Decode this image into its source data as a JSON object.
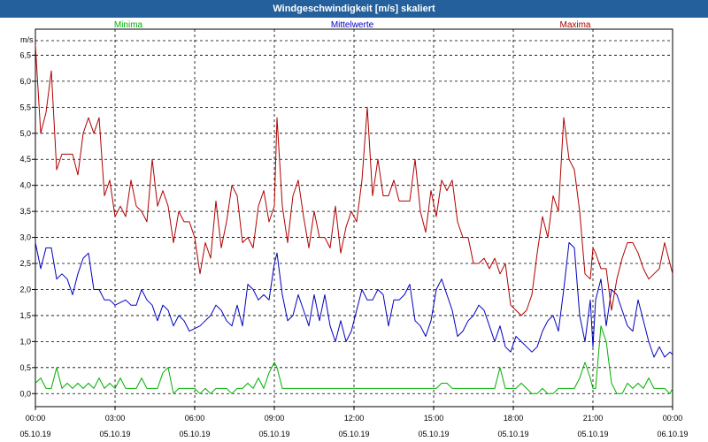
{
  "title": "Windgeschwindigkeit [m/s] skaliert",
  "chart_data": {
    "type": "line",
    "title": "Windgeschwindigkeit [m/s] skaliert",
    "ylabel": "m/s",
    "ylim": [
      -0.25,
      7.0
    ],
    "yticks": [
      "0,0",
      "0,5",
      "1,0",
      "1,5",
      "2,0",
      "2,5",
      "3,0",
      "3,5",
      "4,0",
      "4,5",
      "5,0",
      "5,5",
      "6,0",
      "6,5"
    ],
    "xlim": [
      0,
      24
    ],
    "xticks": [
      {
        "time": "00:00",
        "date": "05.10.19"
      },
      {
        "time": "03:00",
        "date": "05.10.19"
      },
      {
        "time": "06:00",
        "date": "05.10.19"
      },
      {
        "time": "09:00",
        "date": "05.10.19"
      },
      {
        "time": "12:00",
        "date": "05.10.19"
      },
      {
        "time": "15:00",
        "date": "05.10.19"
      },
      {
        "time": "18:00",
        "date": "05.10.19"
      },
      {
        "time": "21:00",
        "date": "05.10.19"
      },
      {
        "time": "00:00",
        "date": "06.10.19"
      }
    ],
    "grid": true,
    "legend_position": "top",
    "series": [
      {
        "name": "Minima",
        "color": "#00b000",
        "x": [
          0,
          0.2,
          0.4,
          0.6,
          0.8,
          1.0,
          1.2,
          1.4,
          1.6,
          1.8,
          2.0,
          2.2,
          2.4,
          2.6,
          2.8,
          3.0,
          3.2,
          3.4,
          3.6,
          3.8,
          4.0,
          4.2,
          4.4,
          4.6,
          4.8,
          5.0,
          5.2,
          5.4,
          5.6,
          5.8,
          6.0,
          6.2,
          6.4,
          6.6,
          6.8,
          7.0,
          7.2,
          7.4,
          7.6,
          7.8,
          8.0,
          8.2,
          8.4,
          8.6,
          8.8,
          9.0,
          9.1,
          9.3,
          9.5,
          9.7,
          9.9,
          10.1,
          10.3,
          10.5,
          10.7,
          10.9,
          11.1,
          11.3,
          11.5,
          11.7,
          11.9,
          12.1,
          12.3,
          12.5,
          12.7,
          12.9,
          13.1,
          13.3,
          13.5,
          13.7,
          13.9,
          14.1,
          14.3,
          14.5,
          14.7,
          14.9,
          15.1,
          15.3,
          15.5,
          15.7,
          15.9,
          16.1,
          16.3,
          16.5,
          16.7,
          16.9,
          17.1,
          17.3,
          17.5,
          17.7,
          17.9,
          18.1,
          18.3,
          18.5,
          18.7,
          18.9,
          19.1,
          19.3,
          19.5,
          19.7,
          19.9,
          20.1,
          20.3,
          20.5,
          20.7,
          20.9,
          21.0,
          21.1,
          21.3,
          21.5,
          21.7,
          21.9,
          22.1,
          22.3,
          22.5,
          22.7,
          22.9,
          23.1,
          23.3,
          23.5,
          23.7,
          23.9,
          24.0
        ],
        "values": [
          0.2,
          0.3,
          0.1,
          0.1,
          0.5,
          0.1,
          0.2,
          0.1,
          0.2,
          0.1,
          0.2,
          0.1,
          0.3,
          0.1,
          0.2,
          0.1,
          0.3,
          0.1,
          0.1,
          0.1,
          0.3,
          0.1,
          0.1,
          0.1,
          0.4,
          0.5,
          0.0,
          0.1,
          0.1,
          0.1,
          0.1,
          0.0,
          0.1,
          0.0,
          0.1,
          0.1,
          0.1,
          0.0,
          0.1,
          0.1,
          0.2,
          0.1,
          0.3,
          0.1,
          0.4,
          0.6,
          0.5,
          0.1,
          0.1,
          0.1,
          0.1,
          0.1,
          0.1,
          0.1,
          0.1,
          0.1,
          0.1,
          0.1,
          0.1,
          0.1,
          0.1,
          0.1,
          0.1,
          0.1,
          0.1,
          0.1,
          0.1,
          0.1,
          0.1,
          0.1,
          0.1,
          0.1,
          0.1,
          0.1,
          0.1,
          0.1,
          0.1,
          0.2,
          0.2,
          0.1,
          0.1,
          0.1,
          0.1,
          0.1,
          0.1,
          0.1,
          0.1,
          0.1,
          0.5,
          0.1,
          0.1,
          0.1,
          0.2,
          0.1,
          0.0,
          0.0,
          0.1,
          0.0,
          0.0,
          0.1,
          0.1,
          0.1,
          0.1,
          0.3,
          0.6,
          0.3,
          0.1,
          0.1,
          1.3,
          1.0,
          0.2,
          0.0,
          0.0,
          0.2,
          0.1,
          0.2,
          0.1,
          0.3,
          0.1,
          0.1,
          0.1,
          0.0,
          0.1
        ]
      },
      {
        "name": "Mittelwerte",
        "color": "#0000c0",
        "x": [
          0,
          0.2,
          0.4,
          0.6,
          0.8,
          1.0,
          1.2,
          1.4,
          1.6,
          1.8,
          2.0,
          2.2,
          2.4,
          2.6,
          2.8,
          3.0,
          3.2,
          3.4,
          3.6,
          3.8,
          4.0,
          4.2,
          4.4,
          4.6,
          4.8,
          5.0,
          5.2,
          5.4,
          5.6,
          5.8,
          6.0,
          6.2,
          6.4,
          6.6,
          6.8,
          7.0,
          7.2,
          7.4,
          7.6,
          7.8,
          8.0,
          8.2,
          8.4,
          8.6,
          8.8,
          9.0,
          9.1,
          9.3,
          9.5,
          9.7,
          9.9,
          10.1,
          10.3,
          10.5,
          10.7,
          10.9,
          11.1,
          11.3,
          11.5,
          11.7,
          11.9,
          12.1,
          12.3,
          12.5,
          12.7,
          12.9,
          13.1,
          13.3,
          13.5,
          13.7,
          13.9,
          14.1,
          14.3,
          14.5,
          14.7,
          14.9,
          15.1,
          15.3,
          15.5,
          15.7,
          15.9,
          16.1,
          16.3,
          16.5,
          16.7,
          16.9,
          17.1,
          17.3,
          17.5,
          17.7,
          17.9,
          18.1,
          18.3,
          18.5,
          18.7,
          18.9,
          19.1,
          19.3,
          19.5,
          19.7,
          19.9,
          20.1,
          20.3,
          20.5,
          20.7,
          20.9,
          21.0,
          21.1,
          21.3,
          21.5,
          21.7,
          21.9,
          22.1,
          22.3,
          22.5,
          22.7,
          22.9,
          23.1,
          23.3,
          23.5,
          23.7,
          23.9,
          24.0
        ],
        "values": [
          2.9,
          2.4,
          2.8,
          2.8,
          2.2,
          2.3,
          2.2,
          1.9,
          2.3,
          2.6,
          2.7,
          2.0,
          2.0,
          1.8,
          1.8,
          1.7,
          1.75,
          1.8,
          1.7,
          1.7,
          2.0,
          1.8,
          1.7,
          1.4,
          1.7,
          1.6,
          1.3,
          1.5,
          1.4,
          1.2,
          1.25,
          1.3,
          1.4,
          1.5,
          1.7,
          1.6,
          1.4,
          1.3,
          1.7,
          1.3,
          2.1,
          2.0,
          1.8,
          1.9,
          1.8,
          2.5,
          2.7,
          1.9,
          1.4,
          1.5,
          1.9,
          1.6,
          1.3,
          1.9,
          1.4,
          1.9,
          1.3,
          1.0,
          1.4,
          1.0,
          1.2,
          1.6,
          2.0,
          1.8,
          1.8,
          2.0,
          1.9,
          1.3,
          1.8,
          1.8,
          1.9,
          2.1,
          1.4,
          1.3,
          1.1,
          1.4,
          2.0,
          2.2,
          1.9,
          1.6,
          1.1,
          1.2,
          1.4,
          1.5,
          1.7,
          1.6,
          1.3,
          1.0,
          1.3,
          0.9,
          0.8,
          1.1,
          1.0,
          0.9,
          0.8,
          0.9,
          1.2,
          1.4,
          1.5,
          1.2,
          2.0,
          2.9,
          2.8,
          1.5,
          1.0,
          1.8,
          0.9,
          1.8,
          2.2,
          1.3,
          2.0,
          1.9,
          1.6,
          1.3,
          1.2,
          1.8,
          1.4,
          1.0,
          0.7,
          0.9,
          0.7,
          0.8,
          0.75
        ]
      },
      {
        "name": "Maxima",
        "color": "#b00000",
        "x": [
          0,
          0.2,
          0.4,
          0.6,
          0.8,
          1.0,
          1.2,
          1.4,
          1.6,
          1.8,
          2.0,
          2.2,
          2.4,
          2.6,
          2.8,
          3.0,
          3.2,
          3.4,
          3.6,
          3.8,
          4.0,
          4.2,
          4.4,
          4.6,
          4.8,
          5.0,
          5.2,
          5.4,
          5.6,
          5.8,
          6.0,
          6.2,
          6.4,
          6.6,
          6.8,
          7.0,
          7.2,
          7.4,
          7.6,
          7.8,
          8.0,
          8.2,
          8.4,
          8.6,
          8.8,
          9.0,
          9.1,
          9.3,
          9.5,
          9.7,
          9.9,
          10.1,
          10.3,
          10.5,
          10.7,
          10.9,
          11.1,
          11.3,
          11.5,
          11.7,
          11.9,
          12.1,
          12.3,
          12.5,
          12.7,
          12.9,
          13.1,
          13.3,
          13.5,
          13.7,
          13.9,
          14.1,
          14.3,
          14.5,
          14.7,
          14.9,
          15.1,
          15.3,
          15.5,
          15.7,
          15.9,
          16.1,
          16.3,
          16.5,
          16.7,
          16.9,
          17.1,
          17.3,
          17.5,
          17.7,
          17.9,
          18.1,
          18.3,
          18.5,
          18.7,
          18.9,
          19.1,
          19.3,
          19.5,
          19.7,
          19.9,
          20.1,
          20.3,
          20.5,
          20.7,
          20.9,
          21.0,
          21.1,
          21.3,
          21.5,
          21.7,
          21.9,
          22.1,
          22.3,
          22.5,
          22.7,
          22.9,
          23.1,
          23.3,
          23.5,
          23.7,
          23.9,
          24.0
        ],
        "values": [
          6.7,
          5.0,
          5.4,
          6.2,
          4.3,
          4.6,
          4.6,
          4.6,
          4.2,
          5.0,
          5.3,
          5.0,
          5.3,
          3.8,
          4.1,
          3.4,
          3.6,
          3.4,
          4.1,
          3.6,
          3.5,
          3.3,
          4.5,
          3.6,
          3.9,
          3.6,
          2.9,
          3.5,
          3.3,
          3.3,
          3.0,
          2.3,
          2.9,
          2.6,
          3.7,
          2.8,
          3.3,
          4.0,
          3.8,
          2.9,
          3.0,
          2.8,
          3.6,
          3.9,
          3.3,
          3.6,
          5.3,
          3.6,
          2.9,
          3.8,
          4.1,
          3.4,
          2.8,
          3.5,
          3.0,
          3.0,
          2.8,
          3.6,
          2.7,
          3.2,
          3.5,
          3.3,
          4.1,
          5.5,
          3.8,
          4.5,
          3.8,
          3.8,
          4.1,
          3.7,
          3.7,
          3.7,
          4.5,
          3.5,
          3.1,
          3.9,
          3.4,
          4.1,
          3.9,
          4.1,
          3.3,
          3.0,
          3.0,
          2.5,
          2.5,
          2.6,
          2.4,
          2.6,
          2.3,
          2.5,
          1.7,
          1.6,
          1.5,
          1.6,
          1.9,
          2.7,
          3.4,
          3.0,
          3.8,
          3.5,
          5.3,
          4.5,
          4.3,
          3.5,
          2.3,
          2.2,
          2.8,
          2.7,
          2.4,
          2.4,
          1.6,
          2.2,
          2.6,
          2.9,
          2.9,
          2.7,
          2.4,
          2.2,
          2.3,
          2.4,
          2.9,
          2.5,
          2.3
        ]
      }
    ]
  }
}
